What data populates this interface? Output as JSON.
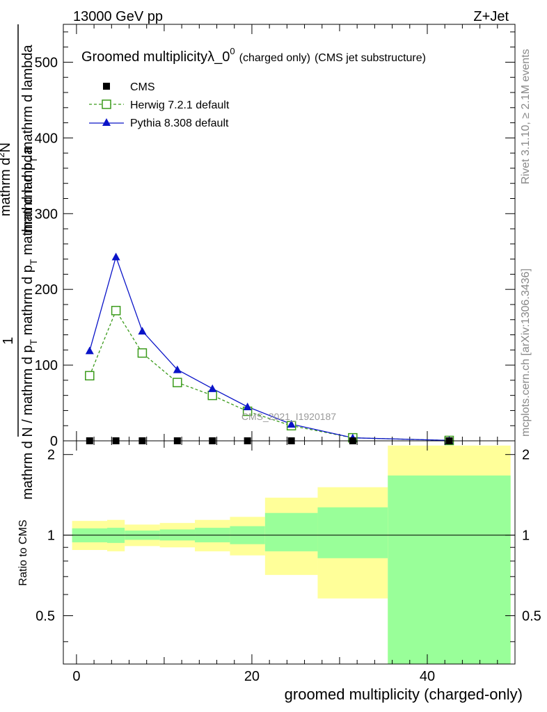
{
  "header": {
    "energy_label": "13000 GeV pp",
    "process_label": "Z+Jet"
  },
  "side_labels": {
    "rivet": "Rivet 3.1.10, ≥ 2.1M events",
    "mcplots": "mcplots.cern.ch [arXiv:1306.3436]"
  },
  "colors": {
    "cms": "#000000",
    "herwig": "#3a9a1a",
    "pythia": "#0a14c8",
    "band_inner": "#99ff99",
    "band_outer": "#ffff99"
  },
  "chart_data": [
    {
      "type": "line",
      "title_main": "Groomed multiplicityλ_0",
      "title_sup": "0",
      "title_small": "(charged only)",
      "title_tail": "(CMS jet substructure)",
      "watermark": "CMS_2021_I1920187",
      "ylabel_top": "1",
      "ylabel_frac_top": "mathrm d",
      "ylabel_frac_top_sup": "2",
      "ylabel_frac_top_tail": "N",
      "ylabel_num": "mathrm d p",
      "ylabel_num_sub": "T",
      "ylabel_num_tail": " mathrm d lambda",
      "ylabel_den": "mathrm d N / mathrm d p",
      "ylabel_den_sub": "T",
      "ylabel_den_tail": " mathrm d p",
      "ylabel_den_sub2": "T",
      "ylabel_den_tail2": " mathrm d lambda",
      "xlim": [
        -1.5,
        50
      ],
      "ylim": [
        0,
        550
      ],
      "yticks": [
        0,
        100,
        200,
        300,
        400,
        500
      ],
      "legend": [
        {
          "label": "CMS",
          "marker": "square-filled"
        },
        {
          "label": "Herwig 7.2.1 default",
          "marker": "square-open",
          "line": "dashed"
        },
        {
          "label": "Pythia 8.308 default",
          "marker": "triangle-filled",
          "line": "solid"
        }
      ],
      "series": [
        {
          "name": "CMS",
          "x": [
            1.5,
            4.5,
            7.5,
            11.5,
            15.5,
            19.5,
            24.5,
            31.5,
            42.5
          ],
          "y": [
            0.05,
            0.06,
            0.05,
            0.04,
            0.03,
            0.02,
            0.01,
            0.004,
            0.001
          ]
        },
        {
          "name": "Herwig 7.2.1 default",
          "x": [
            1.5,
            4.5,
            7.5,
            11.5,
            15.5,
            19.5,
            24.5,
            31.5,
            42.5
          ],
          "y": [
            86,
            172,
            116,
            77,
            60,
            39,
            20,
            4,
            0.5
          ]
        },
        {
          "name": "Pythia 8.308 default",
          "x": [
            1.5,
            4.5,
            7.5,
            11.5,
            15.5,
            19.5,
            24.5,
            31.5,
            42.5
          ],
          "y": [
            119,
            243,
            145,
            94,
            69,
            45,
            22,
            4,
            0.6
          ]
        }
      ]
    },
    {
      "type": "area",
      "ylabel": "Ratio to CMS",
      "xlabel": "groomed multiplicity (charged-only)",
      "xlim": [
        -1.5,
        50
      ],
      "ylim": [
        0.33,
        2.25
      ],
      "yscale": "log",
      "yticks": [
        0.5,
        1,
        2
      ],
      "xticks": [
        0,
        20,
        40
      ],
      "bins": [
        {
          "lo": -0.5,
          "hi": 3.5,
          "inner_lo": 0.94,
          "inner_hi": 1.06,
          "outer_lo": 0.88,
          "outer_hi": 1.13
        },
        {
          "lo": 3.5,
          "hi": 5.5,
          "inner_lo": 0.935,
          "inner_hi": 1.065,
          "outer_lo": 0.87,
          "outer_hi": 1.14
        },
        {
          "lo": 5.5,
          "hi": 9.5,
          "inner_lo": 0.96,
          "inner_hi": 1.04,
          "outer_lo": 0.91,
          "outer_hi": 1.095
        },
        {
          "lo": 9.5,
          "hi": 13.5,
          "inner_lo": 0.955,
          "inner_hi": 1.05,
          "outer_lo": 0.9,
          "outer_hi": 1.11
        },
        {
          "lo": 13.5,
          "hi": 17.5,
          "inner_lo": 0.94,
          "inner_hi": 1.065,
          "outer_lo": 0.87,
          "outer_hi": 1.14
        },
        {
          "lo": 17.5,
          "hi": 21.5,
          "inner_lo": 0.925,
          "inner_hi": 1.08,
          "outer_lo": 0.84,
          "outer_hi": 1.17
        },
        {
          "lo": 21.5,
          "hi": 27.5,
          "inner_lo": 0.87,
          "inner_hi": 1.21,
          "outer_lo": 0.71,
          "outer_hi": 1.38
        },
        {
          "lo": 27.5,
          "hi": 35.5,
          "inner_lo": 0.82,
          "inner_hi": 1.27,
          "outer_lo": 0.58,
          "outer_hi": 1.51
        },
        {
          "lo": 35.5,
          "hi": 49.5,
          "inner_lo": 0.33,
          "inner_hi": 1.67,
          "outer_lo": 0.33,
          "outer_hi": 2.16
        }
      ],
      "reference": 1
    }
  ]
}
